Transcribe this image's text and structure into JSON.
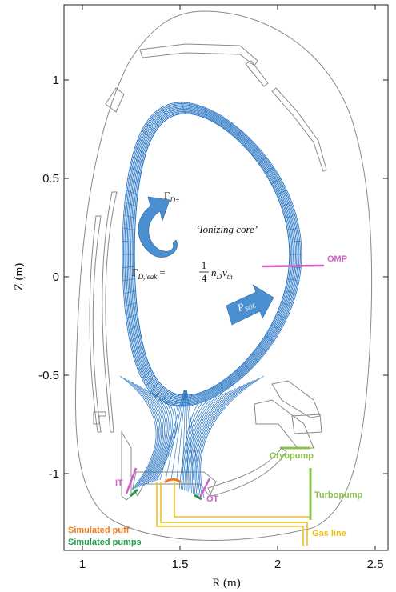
{
  "axes": {
    "xlabel": "R (m)",
    "ylabel": "Z (m)",
    "xticks": [
      "1",
      "1.5",
      "2",
      "2.5"
    ],
    "yticks": [
      "1",
      "0.5",
      "0",
      "-0.5",
      "-1"
    ]
  },
  "annotations": {
    "flux_ion": "Γ",
    "flux_ion_sub": "D+",
    "ionizing_core": "‘Ionizing core’",
    "leak_lhs": "Γ",
    "leak_sub": "D,leak",
    "leak_eq": "=",
    "leak_num": "1",
    "leak_den": "4",
    "leak_rhs_n": "n",
    "leak_rhs_nsub": "D",
    "leak_rhs_v": "v",
    "leak_rhs_vsub": "th",
    "psol": "P",
    "psol_sub": "SOL"
  },
  "labels": {
    "omp": "OMP",
    "it": "IT",
    "ot": "OT",
    "cryopump": "Cryopump",
    "turbopump": "Turbopump",
    "gas_line": "Gas line",
    "simulated_puff": "Simulated puff",
    "simulated_pumps": "Simulated pumps"
  },
  "colors": {
    "mesh": "#1f6fbf",
    "arrow": "#4a8fd0",
    "magenta": "#d15fc9",
    "green_pump": "#8bc34a",
    "gas": "#f2c013",
    "puff": "#f07b19",
    "sim_pumps": "#1e9e4a",
    "wall": "#8a8a8a"
  }
}
